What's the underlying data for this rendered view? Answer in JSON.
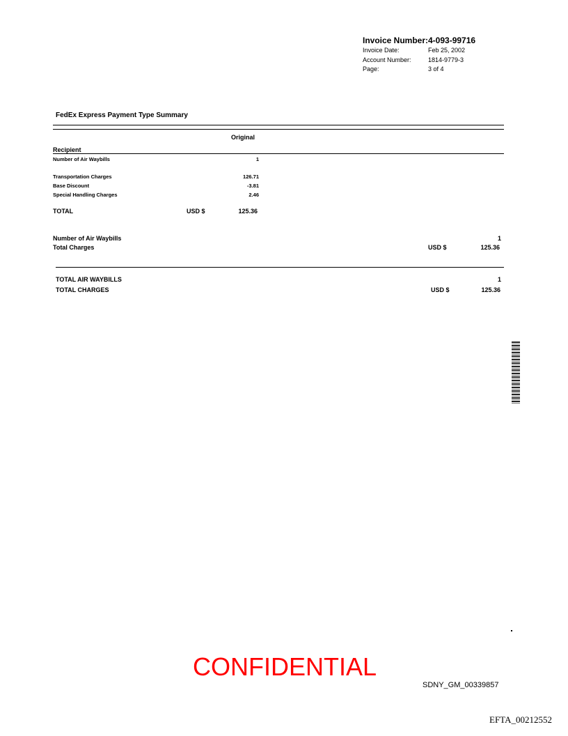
{
  "header": {
    "invoice_number_label": "Invoice Number:",
    "invoice_number": "4-093-99716",
    "invoice_date_label": "Invoice Date:",
    "invoice_date": "Feb 25, 2002",
    "account_number_label": "Account Number:",
    "account_number": "1814-9779-3",
    "page_label": "Page:",
    "page": "3 of 4"
  },
  "section_title": "FedEx Express Payment Type Summary",
  "column_header": "Original",
  "group": "Recipient",
  "rows": [
    {
      "label": "Number of Air Waybills",
      "value": "1"
    },
    {
      "label": "Transportation Charges",
      "value": "126.71"
    },
    {
      "label": "Base Discount",
      "value": "-3.81"
    },
    {
      "label": "Special Handling Charges",
      "value": "2.46"
    }
  ],
  "total": {
    "label": "TOTAL",
    "currency": "USD $",
    "value": "125.36"
  },
  "subtotal": {
    "waybills_label": "Number of Air Waybills",
    "waybills": "1",
    "charges_label": "Total Charges",
    "currency": "USD $",
    "charges": "125.36"
  },
  "grand": {
    "waybills_label": "TOTAL AIR WAYBILLS",
    "waybills": "1",
    "charges_label": "TOTAL CHARGES",
    "currency": "USD $",
    "charges": "125.36"
  },
  "stamp": "CONFIDENTIAL",
  "bates": "SDNY_GM_00339857",
  "efta": "EFTA_00212552",
  "colors": {
    "confidential": "#ff0000"
  }
}
